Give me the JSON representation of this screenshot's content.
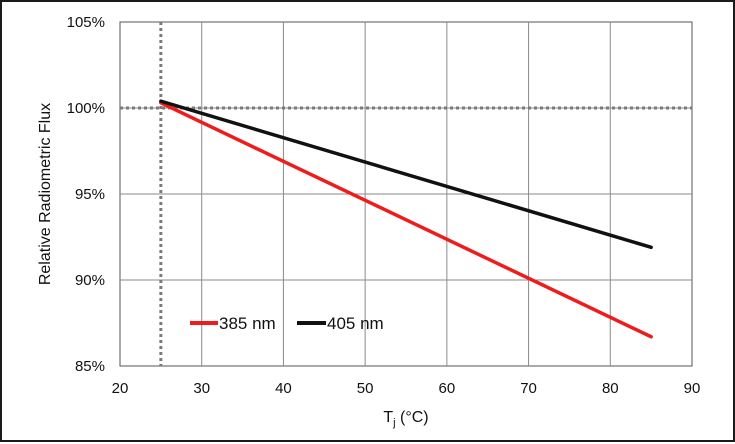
{
  "chart_data": {
    "type": "line",
    "title": "",
    "xlabel_main": "T",
    "xlabel_sub": "j",
    "xlabel_unit": " (°C)",
    "ylabel": "Relative Radiometric Flux",
    "xlim": [
      20,
      90
    ],
    "ylim": [
      85,
      105
    ],
    "xticks": [
      20,
      30,
      40,
      50,
      60,
      70,
      80,
      90
    ],
    "yticks": [
      85,
      90,
      95,
      100,
      105
    ],
    "ytick_suffix": "%",
    "grid": true,
    "reference_lines": {
      "x": 25,
      "y": 100
    },
    "legend_position": "lower-left",
    "series": [
      {
        "name": "385 nm",
        "color": "#ee1c1c",
        "x": [
          25,
          85
        ],
        "y": [
          100.3,
          86.7
        ]
      },
      {
        "name": "405 nm",
        "color": "#111111",
        "x": [
          25,
          85
        ],
        "y": [
          100.4,
          91.9
        ]
      }
    ]
  }
}
